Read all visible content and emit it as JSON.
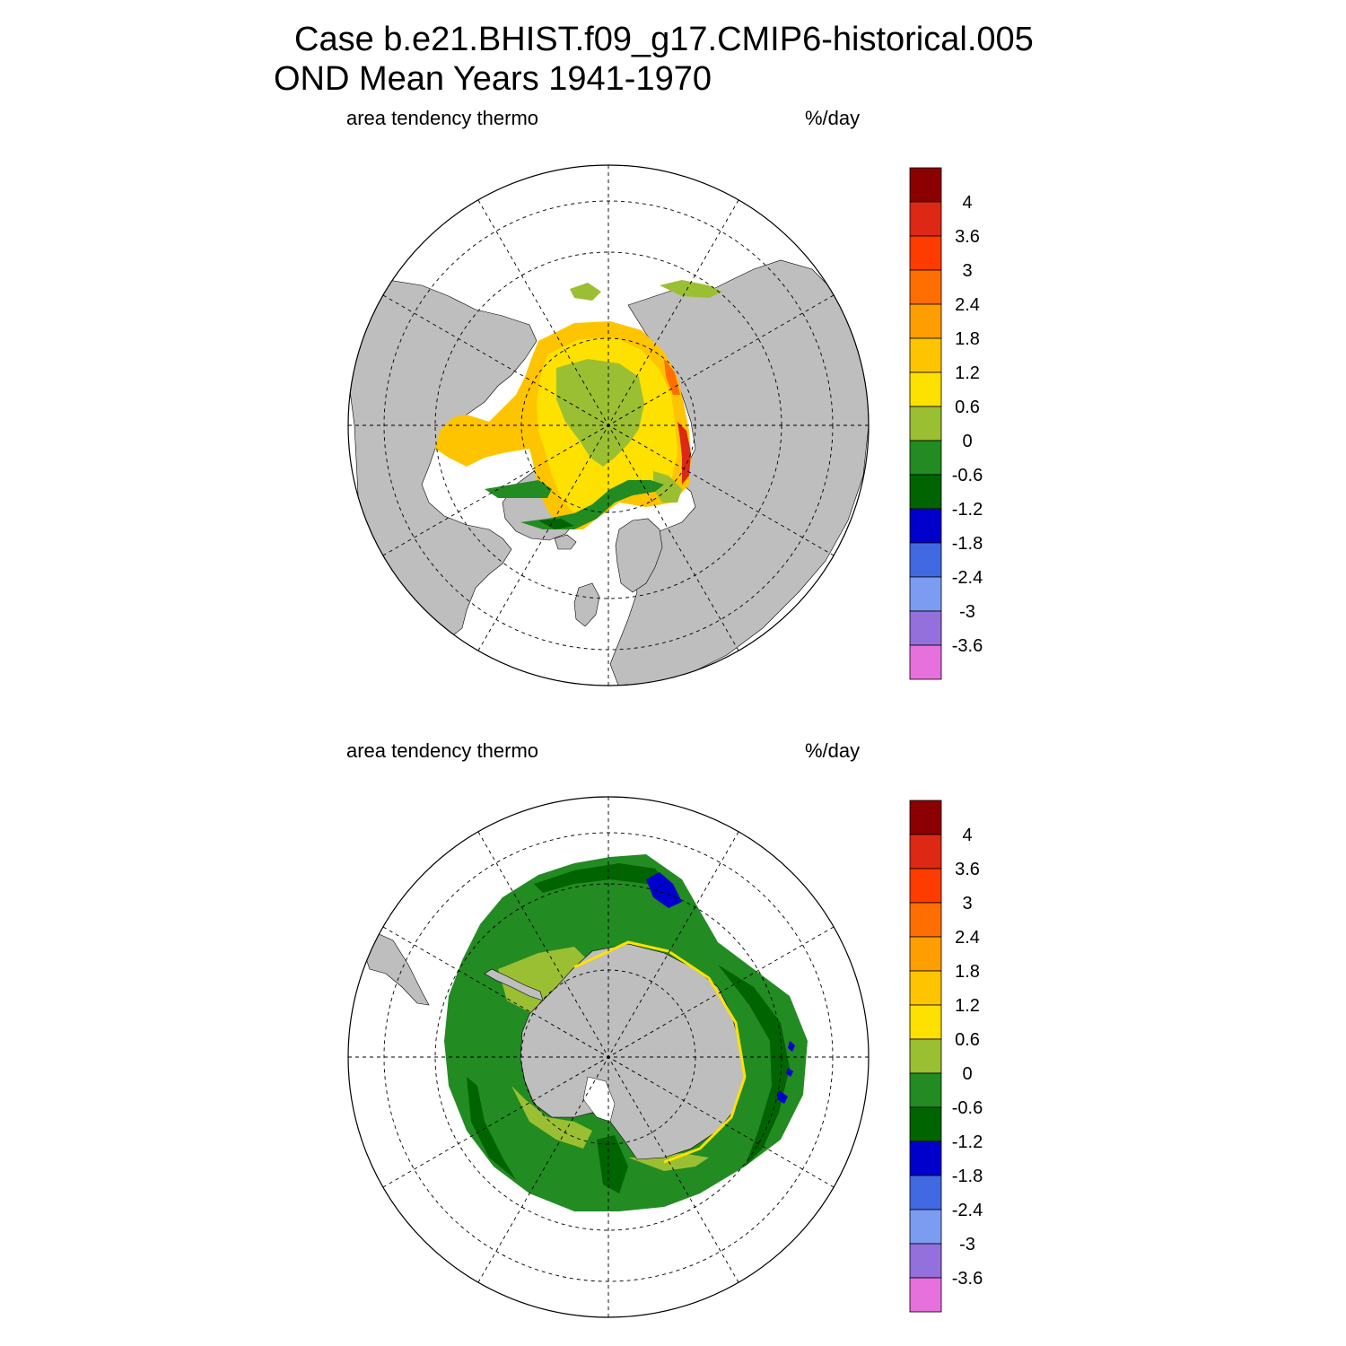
{
  "title": {
    "line1": "Case b.e21.BHIST.f09_g17.CMIP6-historical.005",
    "line2": "OND Mean   Years 1941-1970"
  },
  "panels": [
    {
      "id": "north",
      "left_label": "area tendency thermo",
      "right_label": "%/day",
      "hemisphere": "Arctic"
    },
    {
      "id": "south",
      "left_label": "area tendency thermo",
      "right_label": "%/day",
      "hemisphere": "Antarctic"
    }
  ],
  "colorbar": {
    "labels": [
      "4",
      "3.6",
      "3",
      "2.4",
      "1.8",
      "1.2",
      "0.6",
      "0",
      "-0.6",
      "-1.2",
      "-1.8",
      "-2.4",
      "-3",
      "-3.6"
    ],
    "colors": [
      "#8B0000",
      "#DC2814",
      "#FF3C00",
      "#FF6E00",
      "#FF9E00",
      "#FFC400",
      "#FFE100",
      "#9BBF32",
      "#228B22",
      "#006400",
      "#0000CD",
      "#4169E1",
      "#7B9CF0",
      "#9370DB",
      "#E670DC"
    ]
  },
  "colors": {
    "land": "#BEBEBE",
    "ocean": "#FFFFFF"
  }
}
